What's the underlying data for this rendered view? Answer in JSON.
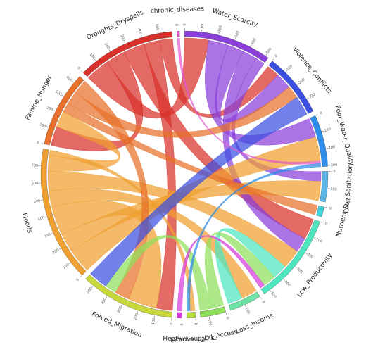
{
  "chart_data": {
    "type": "chord",
    "segments": [
      {
        "name": "chronic_diseases",
        "color": "#e05ad0"
      },
      {
        "name": "Water_Scarcity",
        "color": "#8a3fd9"
      },
      {
        "name": "Violence_Conflicts",
        "color": "#3b4fe0"
      },
      {
        "name": "Poor_Water_Quality",
        "color": "#2e8de8"
      },
      {
        "name": "Poor_Sanitation",
        "color": "#5ab4e6"
      },
      {
        "name": "Nutrient_Def",
        "color": "#3fd0d8"
      },
      {
        "name": "Low_Productivity",
        "color": "#4ee6c0"
      },
      {
        "name": "Loss_Income",
        "color": "#6fe3a6"
      },
      {
        "name": "Land_Access",
        "color": "#8ee05a"
      },
      {
        "name": "Infectious_Dis",
        "color": "#b6e03c"
      },
      {
        "name": "Heatwave",
        "color": "#d63cdc"
      },
      {
        "name": "Forced_Migration",
        "color": "#c8d83c"
      },
      {
        "name": "Floods",
        "color": "#f0a030"
      },
      {
        "name": "Famine_Hunger",
        "color": "#e8702a"
      },
      {
        "name": "Droughts_Dryspells",
        "color": "#d8302a"
      }
    ],
    "links": [
      {
        "source": "Droughts_Dryspells",
        "target": "Water_Scarcity",
        "value": 150
      },
      {
        "source": "Droughts_Dryspells",
        "target": "Famine_Hunger",
        "value": 120
      },
      {
        "source": "Droughts_Dryspells",
        "target": "Low_Productivity",
        "value": 130
      },
      {
        "source": "Droughts_Dryspells",
        "target": "Forced_Migration",
        "value": 100
      },
      {
        "source": "Droughts_Dryspells",
        "target": "Violence_Conflicts",
        "value": 80
      },
      {
        "source": "Water_Scarcity",
        "target": "Poor_Water_Quality",
        "value": 120
      },
      {
        "source": "Water_Scarcity",
        "target": "Violence_Conflicts",
        "value": 100
      },
      {
        "source": "Water_Scarcity",
        "target": "Low_Productivity",
        "value": 90
      },
      {
        "source": "Water_Scarcity",
        "target": "Poor_Sanitation",
        "value": 60
      },
      {
        "source": "Floods",
        "target": "Poor_Water_Quality",
        "value": 150
      },
      {
        "source": "Floods",
        "target": "Poor_Sanitation",
        "value": 120
      },
      {
        "source": "Floods",
        "target": "Forced_Migration",
        "value": 180
      },
      {
        "source": "Floods",
        "target": "Loss_Income",
        "value": 100
      },
      {
        "source": "Floods",
        "target": "Low_Productivity",
        "value": 120
      },
      {
        "source": "Floods",
        "target": "Famine_Hunger",
        "value": 100
      },
      {
        "source": "Floods",
        "target": "Infectious_Dis",
        "value": 30
      },
      {
        "source": "Famine_Hunger",
        "target": "Nutrient_Def",
        "value": 60
      },
      {
        "source": "Famine_Hunger",
        "target": "Violence_Conflicts",
        "value": 80
      },
      {
        "source": "Famine_Hunger",
        "target": "Forced_Migration",
        "value": 90
      },
      {
        "source": "Low_Productivity",
        "target": "Loss_Income",
        "value": 90
      },
      {
        "source": "Land_Access",
        "target": "Low_Productivity",
        "value": 80
      },
      {
        "source": "Land_Access",
        "target": "Forced_Migration",
        "value": 70
      },
      {
        "source": "Violence_Conflicts",
        "target": "Forced_Migration",
        "value": 120
      },
      {
        "source": "Heatwave",
        "target": "Low_Productivity",
        "value": 30
      },
      {
        "source": "chronic_diseases",
        "target": "Poor_Water_Quality",
        "value": 15
      },
      {
        "source": "Poor_Water_Quality",
        "target": "Infectious_Dis",
        "value": 20
      }
    ],
    "ticks": [
      0,
      100,
      200,
      300,
      400,
      500,
      600,
      700
    ]
  }
}
